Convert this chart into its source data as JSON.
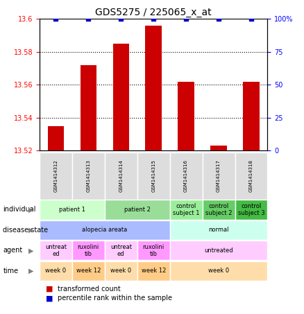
{
  "title": "GDS5275 / 225065_x_at",
  "samples": [
    "GSM1414312",
    "GSM1414313",
    "GSM1414314",
    "GSM1414315",
    "GSM1414316",
    "GSM1414317",
    "GSM1414318"
  ],
  "transformed_count": [
    13.535,
    13.572,
    13.585,
    13.596,
    13.562,
    13.523,
    13.562
  ],
  "percentile_rank": [
    100,
    100,
    100,
    100,
    100,
    100,
    100
  ],
  "ylim_left": [
    13.52,
    13.6
  ],
  "ylim_right": [
    0,
    100
  ],
  "yticks_left": [
    13.52,
    13.54,
    13.56,
    13.58,
    13.6
  ],
  "yticks_right": [
    0,
    25,
    50,
    75,
    100
  ],
  "bar_color": "#cc0000",
  "dot_color": "#0000cc",
  "individual_groups": [
    {
      "label": "patient 1",
      "cols": [
        0,
        1
      ],
      "color": "#ccffcc"
    },
    {
      "label": "patient 2",
      "cols": [
        2,
        3
      ],
      "color": "#99dd99"
    },
    {
      "label": "control\nsubject 1",
      "cols": [
        4
      ],
      "color": "#99ee99"
    },
    {
      "label": "control\nsubject 2",
      "cols": [
        5
      ],
      "color": "#66cc66"
    },
    {
      "label": "control\nsubject 3",
      "cols": [
        6
      ],
      "color": "#44bb44"
    }
  ],
  "disease_groups": [
    {
      "label": "alopecia areata",
      "cols": [
        0,
        1,
        2,
        3
      ],
      "color": "#aabbff"
    },
    {
      "label": "normal",
      "cols": [
        4,
        5,
        6
      ],
      "color": "#ccffee"
    }
  ],
  "agent_groups": [
    {
      "label": "untreat\ned",
      "cols": [
        0
      ],
      "color": "#ffccff"
    },
    {
      "label": "ruxolini\ntib",
      "cols": [
        1
      ],
      "color": "#ff99ff"
    },
    {
      "label": "untreat\ned",
      "cols": [
        2
      ],
      "color": "#ffccff"
    },
    {
      "label": "ruxolini\ntib",
      "cols": [
        3
      ],
      "color": "#ff99ff"
    },
    {
      "label": "untreated",
      "cols": [
        4,
        5,
        6
      ],
      "color": "#ffccff"
    }
  ],
  "time_groups": [
    {
      "label": "week 0",
      "cols": [
        0
      ],
      "color": "#ffddaa"
    },
    {
      "label": "week 12",
      "cols": [
        1
      ],
      "color": "#ffcc88"
    },
    {
      "label": "week 0",
      "cols": [
        2
      ],
      "color": "#ffddaa"
    },
    {
      "label": "week 12",
      "cols": [
        3
      ],
      "color": "#ffcc88"
    },
    {
      "label": "week 0",
      "cols": [
        4,
        5,
        6
      ],
      "color": "#ffddaa"
    }
  ],
  "row_labels": [
    "individual",
    "disease state",
    "agent",
    "time"
  ],
  "legend_items": [
    {
      "label": "transformed count",
      "color": "#cc0000"
    },
    {
      "label": "percentile rank within the sample",
      "color": "#0000cc"
    }
  ]
}
